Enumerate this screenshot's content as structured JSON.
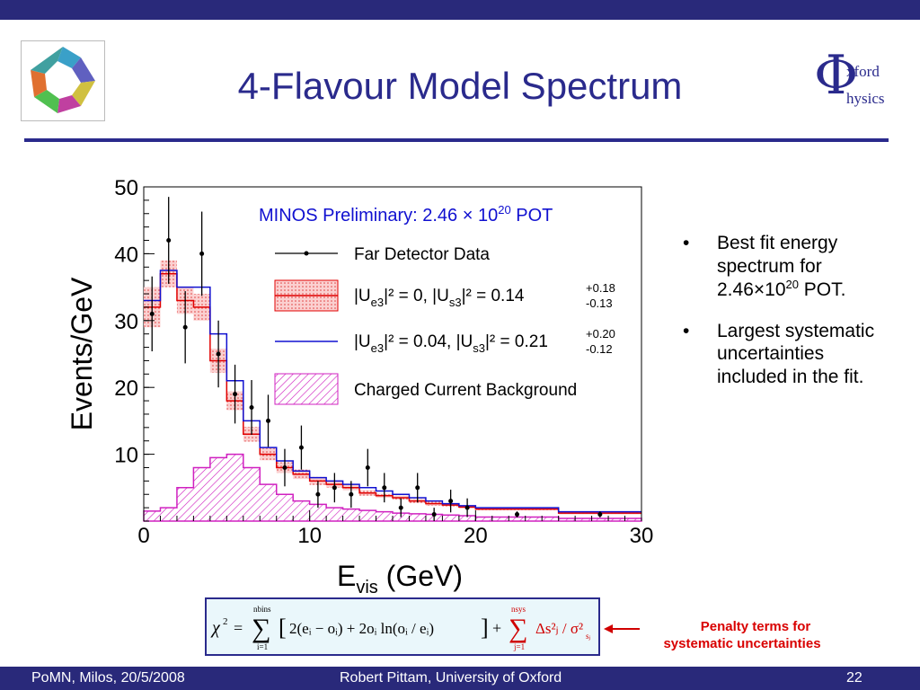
{
  "slide": {
    "title": "4-Flavour Model Spectrum",
    "logo_right": {
      "phi": "Φ",
      "word1": "xford",
      "word2": "hysics"
    }
  },
  "bullets": [
    {
      "text_before": "Best fit energy spectrum for 2.46×10",
      "sup": "20",
      "text_after": " POT."
    },
    {
      "text_before": "Largest systematic uncertainties included in the fit.",
      "sup": "",
      "text_after": ""
    }
  ],
  "formula": {
    "text": "χ² = Σ_{i=1}^{nbins} [2(eᵢ − oᵢ) + 2oᵢ ln(oᵢ/eᵢ)] + Σ_{j=1}^{nsys} Δs²ⱼ/σ²_{sⱼ}"
  },
  "annotation": {
    "line1": "Penalty terms for",
    "line2": "systematic uncertainties"
  },
  "footer": {
    "left": "PoMN, Milos, 20/5/2008",
    "center": "Robert Pittam, University of Oxford",
    "right": "22"
  },
  "chart_data": {
    "type": "line",
    "title": "MINOS Preliminary: 2.46 × 10^20 POT",
    "xlabel": "E_vis (GeV)",
    "ylabel": "Events/GeV",
    "xlim": [
      0,
      30
    ],
    "ylim": [
      0,
      50
    ],
    "x_ticks": [
      0,
      10,
      20,
      30
    ],
    "y_ticks": [
      10,
      20,
      30,
      40,
      50
    ],
    "bin_edges": [
      0,
      1,
      2,
      3,
      4,
      5,
      6,
      7,
      8,
      9,
      10,
      11,
      12,
      13,
      14,
      15,
      16,
      17,
      18,
      19,
      20,
      25,
      30
    ],
    "series": [
      {
        "name": "Far Detector Data",
        "kind": "points",
        "color": "#000000",
        "x": [
          0.5,
          1.5,
          2.5,
          3.5,
          4.5,
          5.5,
          6.5,
          7.5,
          8.5,
          9.5,
          10.5,
          11.5,
          12.5,
          13.5,
          14.5,
          15.5,
          16.5,
          17.5,
          18.5,
          19.5,
          22.5,
          27.5
        ],
        "y": [
          31,
          42,
          29,
          40,
          25,
          19,
          17,
          15,
          8,
          11,
          4,
          5,
          4,
          8,
          5,
          2,
          5,
          1,
          3,
          2,
          1,
          1
        ],
        "yerr": [
          5.6,
          6.5,
          5.4,
          6.3,
          5.0,
          4.4,
          4.1,
          3.9,
          2.8,
          3.3,
          2.0,
          2.2,
          2.0,
          2.8,
          2.2,
          1.4,
          2.2,
          1.0,
          1.7,
          1.4,
          0.45,
          0.45
        ]
      },
      {
        "name": "|U_e3|² = 0,  |U_s3|² = 0.14 (+0.18 −0.13)",
        "kind": "histogram",
        "color": "#e00000",
        "fill": "#f4a0a0",
        "values": [
          32,
          37,
          33,
          32,
          24,
          18,
          13,
          10,
          8,
          7,
          6,
          5.5,
          5,
          4.2,
          3.8,
          3.5,
          3,
          2.6,
          2.4,
          2.1,
          1.8,
          1.2
        ],
        "band": [
          3,
          2,
          2,
          2,
          1.8,
          1.4,
          1.1,
          0.9,
          0.8,
          0.7,
          0.6,
          0.5,
          0.4,
          0.4,
          0.3,
          0.3,
          0.3,
          0.3,
          0.2,
          0.2,
          0.2,
          0.2
        ]
      },
      {
        "name": "|U_e3|² = 0.04, |U_s3|² = 0.21 (+0.20 −0.12)",
        "kind": "histogram",
        "color": "#1010d0",
        "values": [
          33,
          37.5,
          35,
          35,
          28,
          21,
          15,
          11,
          9,
          7.5,
          6.5,
          6,
          5.5,
          5,
          4.5,
          4,
          3.5,
          3,
          2.6,
          2.3,
          2,
          1.4
        ]
      },
      {
        "name": "Charged Current Background",
        "kind": "histogram",
        "color": "#d020c0",
        "fill": "#f0a8e8",
        "values": [
          1.5,
          2,
          5,
          8,
          9.5,
          10,
          8,
          5.5,
          4,
          3,
          2.5,
          2,
          1.8,
          1.6,
          1.4,
          1.2,
          1.1,
          1,
          0.9,
          0.8,
          0.6,
          0.4
        ]
      }
    ],
    "legend": [
      {
        "label": "Far Detector Data"
      },
      {
        "label_main": "|U",
        "sub1": "e3",
        "mid": "|² = 0,      |U",
        "sub2": "s3",
        "end": "|² = 0.14",
        "up": "+0.18",
        "down": "-0.13"
      },
      {
        "label_main": "|U",
        "sub1": "e3",
        "mid": "|² = 0.04, |U",
        "sub2": "s3",
        "end": "|² = 0.21",
        "up": "+0.20",
        "down": "-0.12"
      },
      {
        "label": "Charged Current Background"
      }
    ],
    "legend_position": "top-right"
  }
}
